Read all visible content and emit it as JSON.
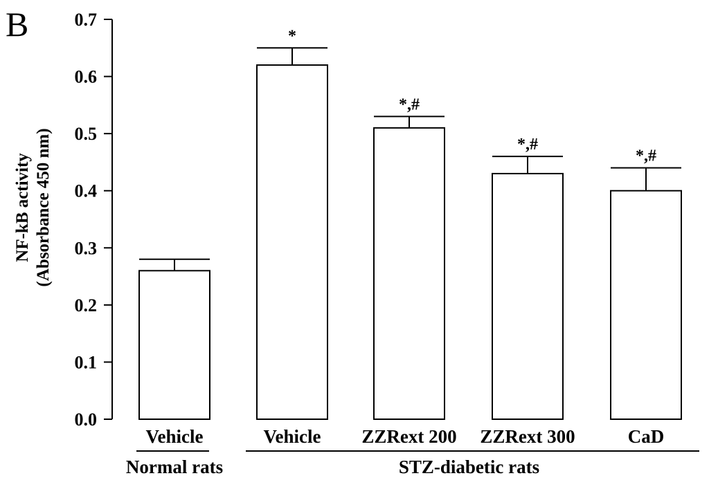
{
  "panel_label": "B",
  "chart_data": {
    "type": "bar",
    "ylabel_line1": "NF-kB activity",
    "ylabel_line2": "(Absorbance 450 nm)",
    "ylim": [
      0,
      0.7
    ],
    "yticks": [
      "0.0",
      "0.1",
      "0.2",
      "0.3",
      "0.4",
      "0.5",
      "0.6",
      "0.7"
    ],
    "tick_values": [
      0,
      0.1,
      0.2,
      0.3,
      0.4,
      0.5,
      0.6,
      0.7
    ],
    "categories": [
      "Vehicle",
      "Vehicle",
      "ZZRext 200",
      "ZZRext 300",
      "CaD"
    ],
    "values": [
      0.26,
      0.62,
      0.51,
      0.43,
      0.4
    ],
    "errors": [
      0.02,
      0.03,
      0.02,
      0.03,
      0.04
    ],
    "annotations": [
      "",
      "*",
      "*,#",
      "*,#",
      "*,#"
    ],
    "groups": [
      {
        "label": "Normal rats",
        "start": 0,
        "end": 0
      },
      {
        "label": "STZ-diabetic rats",
        "start": 1,
        "end": 4
      }
    ]
  }
}
